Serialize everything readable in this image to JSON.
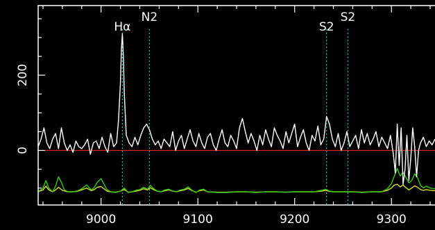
{
  "chart_data": {
    "type": "line",
    "xlim": [
      8935,
      9345
    ],
    "ylim": [
      -145,
      385
    ],
    "x_ticks": [
      9000,
      9100,
      9200,
      9300
    ],
    "y_ticks": [
      0,
      200
    ],
    "grid": false,
    "zero_line": {
      "y": 0,
      "color": "#dd2222"
    },
    "markers": [
      {
        "label": "Hα",
        "x": 9022
      },
      {
        "label": "N2",
        "x": 9050
      },
      {
        "label": "S2",
        "x": 9233
      },
      {
        "label": "S2",
        "x": 9255
      }
    ],
    "series": [
      {
        "color": "#ffffff",
        "x": [
          8935,
          8938,
          8941,
          8944,
          8947,
          8950,
          8953,
          8956,
          8959,
          8962,
          8965,
          8968,
          8971,
          8974,
          8977,
          8980,
          8983,
          8986,
          8989,
          8992,
          8995,
          8998,
          9001,
          9004,
          9007,
          9010,
          9013,
          9016,
          9018,
          9020,
          9021,
          9022,
          9023,
          9024,
          9026,
          9029,
          9032,
          9035,
          9038,
          9041,
          9044,
          9047,
          9050,
          9053,
          9056,
          9059,
          9062,
          9065,
          9068,
          9071,
          9074,
          9077,
          9080,
          9083,
          9086,
          9089,
          9092,
          9095,
          9098,
          9101,
          9104,
          9107,
          9110,
          9113,
          9116,
          9119,
          9122,
          9125,
          9128,
          9131,
          9134,
          9137,
          9140,
          9143,
          9146,
          9149,
          9152,
          9155,
          9158,
          9161,
          9164,
          9167,
          9170,
          9173,
          9176,
          9179,
          9182,
          9185,
          9188,
          9191,
          9194,
          9197,
          9200,
          9203,
          9206,
          9209,
          9212,
          9215,
          9218,
          9221,
          9224,
          9227,
          9230,
          9233,
          9236,
          9239,
          9242,
          9245,
          9248,
          9251,
          9254,
          9257,
          9260,
          9263,
          9266,
          9269,
          9272,
          9275,
          9278,
          9281,
          9284,
          9287,
          9290,
          9293,
          9296,
          9299,
          9302,
          9304,
          9306,
          9308,
          9310,
          9312,
          9314,
          9316,
          9318,
          9320,
          9322,
          9324,
          9326,
          9328,
          9330,
          9333,
          9336,
          9339,
          9342,
          9345
        ],
        "values": [
          10,
          30,
          60,
          20,
          5,
          30,
          45,
          5,
          60,
          20,
          0,
          15,
          -5,
          25,
          10,
          5,
          15,
          30,
          -10,
          20,
          25,
          5,
          35,
          10,
          -5,
          45,
          10,
          20,
          80,
          180,
          270,
          310,
          250,
          150,
          40,
          20,
          10,
          35,
          15,
          40,
          60,
          70,
          55,
          30,
          15,
          25,
          5,
          30,
          20,
          10,
          50,
          0,
          25,
          40,
          5,
          30,
          55,
          25,
          10,
          45,
          20,
          5,
          35,
          45,
          15,
          0,
          30,
          55,
          20,
          10,
          40,
          25,
          5,
          60,
          85,
          50,
          20,
          45,
          25,
          0,
          40,
          15,
          55,
          30,
          10,
          60,
          40,
          25,
          5,
          50,
          20,
          45,
          70,
          10,
          35,
          55,
          20,
          0,
          40,
          25,
          65,
          15,
          30,
          90,
          70,
          30,
          10,
          45,
          0,
          20,
          50,
          10,
          25,
          40,
          5,
          55,
          20,
          45,
          15,
          30,
          50,
          10,
          35,
          20,
          5,
          40,
          -10,
          -60,
          70,
          -40,
          60,
          -90,
          -50,
          40,
          -80,
          -20,
          60,
          10,
          -70,
          0,
          20,
          35,
          10,
          25,
          15,
          30
        ]
      },
      {
        "color": "#33cc11",
        "x": [
          8935,
          8940,
          8943,
          8946,
          8950,
          8953,
          8956,
          8959,
          8962,
          8966,
          8970,
          8975,
          8980,
          8985,
          8990,
          8993,
          8996,
          9000,
          9003,
          9006,
          9010,
          9015,
          9020,
          9024,
          9028,
          9032,
          9036,
          9040,
          9044,
          9048,
          9051,
          9054,
          9058,
          9062,
          9066,
          9070,
          9074,
          9078,
          9082,
          9086,
          9090,
          9094,
          9098,
          9102,
          9106,
          9110,
          9120,
          9130,
          9140,
          9150,
          9160,
          9170,
          9180,
          9190,
          9200,
          9210,
          9220,
          9228,
          9232,
          9236,
          9240,
          9250,
          9260,
          9270,
          9280,
          9290,
          9296,
          9300,
          9303,
          9306,
          9309,
          9312,
          9315,
          9318,
          9321,
          9324,
          9327,
          9330,
          9333,
          9336,
          9340,
          9345
        ],
        "values": [
          -110,
          -100,
          -80,
          -100,
          -110,
          -95,
          -70,
          -85,
          -105,
          -110,
          -110,
          -108,
          -102,
          -92,
          -105,
          -98,
          -85,
          -75,
          -90,
          -104,
          -110,
          -112,
          -108,
          -100,
          -112,
          -110,
          -106,
          -104,
          -98,
          -103,
          -93,
          -101,
          -108,
          -110,
          -105,
          -103,
          -108,
          -110,
          -105,
          -103,
          -97,
          -106,
          -112,
          -105,
          -103,
          -110,
          -112,
          -112,
          -110,
          -110,
          -112,
          -110,
          -110,
          -111,
          -110,
          -110,
          -110,
          -106,
          -103,
          -108,
          -110,
          -110,
          -110,
          -112,
          -110,
          -110,
          -102,
          -88,
          -68,
          -48,
          -68,
          -58,
          -72,
          -86,
          -80,
          -62,
          -73,
          -93,
          -100,
          -95,
          -100,
          -102
        ]
      },
      {
        "color": "#dddd22",
        "x": [
          8935,
          8940,
          8943,
          8946,
          8950,
          8953,
          8956,
          8960,
          8965,
          8970,
          8975,
          8980,
          8985,
          8990,
          8993,
          8996,
          9000,
          9003,
          9006,
          9010,
          9015,
          9020,
          9024,
          9028,
          9032,
          9036,
          9040,
          9044,
          9048,
          9051,
          9054,
          9058,
          9062,
          9066,
          9070,
          9074,
          9078,
          9082,
          9086,
          9090,
          9094,
          9098,
          9102,
          9106,
          9110,
          9120,
          9130,
          9140,
          9150,
          9160,
          9170,
          9180,
          9190,
          9200,
          9210,
          9220,
          9228,
          9232,
          9236,
          9240,
          9250,
          9260,
          9270,
          9280,
          9290,
          9296,
          9300,
          9303,
          9306,
          9309,
          9312,
          9315,
          9318,
          9321,
          9324,
          9327,
          9330,
          9333,
          9336,
          9340,
          9345
        ],
        "values": [
          -110,
          -105,
          -95,
          -105,
          -110,
          -105,
          -98,
          -106,
          -110,
          -110,
          -109,
          -105,
          -100,
          -107,
          -104,
          -98,
          -96,
          -102,
          -108,
          -110,
          -111,
          -108,
          -104,
          -111,
          -110,
          -108,
          -106,
          -102,
          -105,
          -99,
          -104,
          -108,
          -110,
          -107,
          -105,
          -108,
          -110,
          -107,
          -105,
          -101,
          -107,
          -111,
          -107,
          -105,
          -110,
          -111,
          -111,
          -110,
          -110,
          -111,
          -110,
          -110,
          -111,
          -110,
          -110,
          -110,
          -108,
          -106,
          -109,
          -110,
          -110,
          -110,
          -111,
          -110,
          -110,
          -106,
          -100,
          -92,
          -90,
          -97,
          -92,
          -99,
          -105,
          -100,
          -94,
          -98,
          -104,
          -106,
          -104,
          -106,
          -107
        ]
      }
    ]
  }
}
